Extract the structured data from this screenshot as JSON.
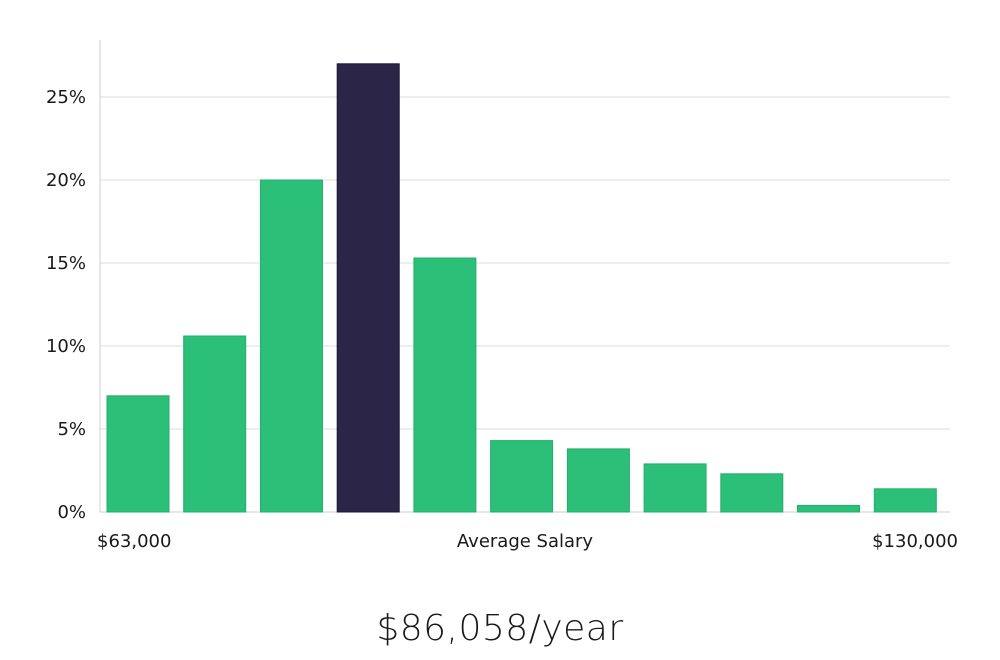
{
  "chart_data": {
    "type": "bar",
    "title": "",
    "xlabel": "Average Salary",
    "ylabel": "",
    "x_min_label": "$63,000",
    "x_max_label": "$130,000",
    "values": [
      7.0,
      10.6,
      20.0,
      27.0,
      15.3,
      4.3,
      3.8,
      2.9,
      2.3,
      0.4,
      1.4
    ],
    "highlight_index": 3,
    "ylim": [
      0,
      28
    ],
    "yticks": [
      0,
      5,
      10,
      15,
      20,
      25
    ],
    "ytick_labels": [
      "0%",
      "5%",
      "10%",
      "15%",
      "20%",
      "25%"
    ],
    "grid": true,
    "colors": {
      "bar": "#2bbf77",
      "highlight": "#2b2647"
    }
  },
  "caption": "$86,058/year"
}
